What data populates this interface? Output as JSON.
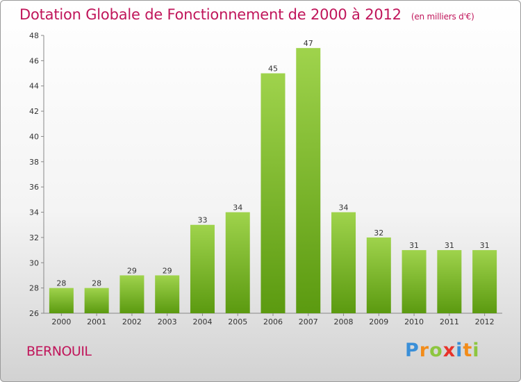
{
  "title": "Dotation Globale de Fonctionnement de 2000 à 2012",
  "unit_note": "(en milliers d'€)",
  "city": "BERNOUIL",
  "logo": {
    "letters": [
      "P",
      "r",
      "o",
      "x",
      "i",
      "t",
      "i"
    ],
    "colors": [
      "#3a8fd8",
      "#f28c1a",
      "#8dc63f",
      "#e8332a",
      "#3a8fd8",
      "#f28c1a",
      "#8dc63f"
    ]
  },
  "colors": {
    "title": "#c0155a",
    "bar_top": "#9fd34c",
    "bar_bottom": "#5b9a10"
  },
  "chart_data": {
    "type": "bar",
    "categories": [
      "2000",
      "2001",
      "2002",
      "2003",
      "2004",
      "2005",
      "2006",
      "2007",
      "2008",
      "2009",
      "2010",
      "2011",
      "2012"
    ],
    "values": [
      28,
      28,
      29,
      29,
      33,
      34,
      45,
      47,
      34,
      32,
      31,
      31,
      31
    ],
    "ylim": [
      26,
      48
    ],
    "yticks": [
      26,
      28,
      30,
      32,
      34,
      36,
      38,
      40,
      42,
      44,
      46,
      48
    ],
    "grid": false,
    "legend": "none"
  }
}
